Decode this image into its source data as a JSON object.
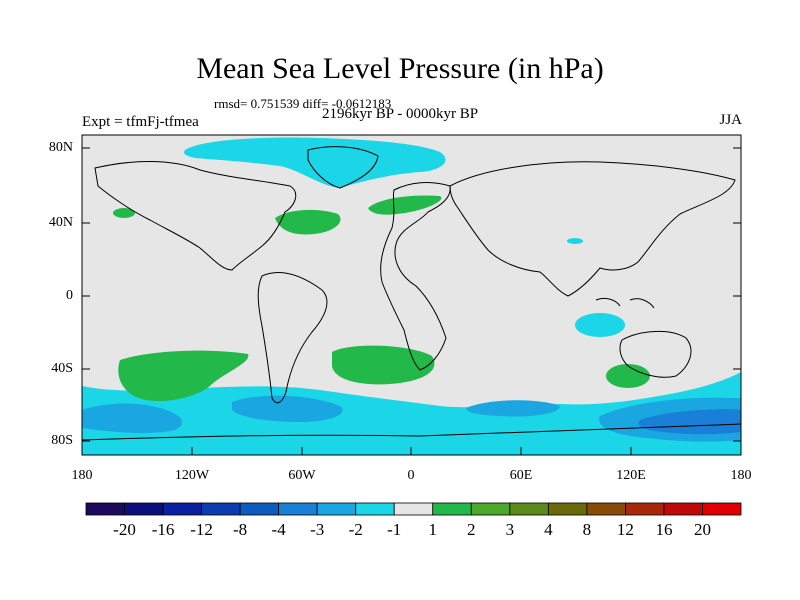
{
  "title": "Mean Sea Level Pressure (in hPa)",
  "stats": "rmsd= 0.751539 diff= -0.0612183",
  "period": "2196kyr BP - 0000kyr BP",
  "experiment": "Expt = tfmFj-tfmea",
  "season": "JJA",
  "axes": {
    "y_ticks": [
      "80N",
      "40N",
      "0",
      "40S",
      "80S"
    ],
    "x_ticks": [
      "180",
      "120W",
      "60W",
      "0",
      "60E",
      "120E",
      "180"
    ]
  },
  "colorbar": {
    "labels": [
      "-20",
      "-16",
      "-12",
      "-8",
      "-4",
      "-3",
      "-2",
      "-1",
      "1",
      "2",
      "3",
      "4",
      "8",
      "12",
      "16",
      "20"
    ],
    "colors": [
      "#1e0a5c",
      "#0a0f7d",
      "#0b1fa3",
      "#0b3db0",
      "#0a5cbf",
      "#1a7fd6",
      "#1aa6e0",
      "#1ad6e6",
      "#e6e6e6",
      "#22b84a",
      "#4aa82a",
      "#5a8a1a",
      "#6a6a0a",
      "#8a4a0a",
      "#a8280a",
      "#c00a0a",
      "#e00000"
    ]
  },
  "colors": {
    "background": "#e6e6e6",
    "positive_2": "#22b84a",
    "negative_1": "#1ad6e6",
    "negative_2": "#1aa6e0",
    "negative_3": "#1a7fd6"
  }
}
